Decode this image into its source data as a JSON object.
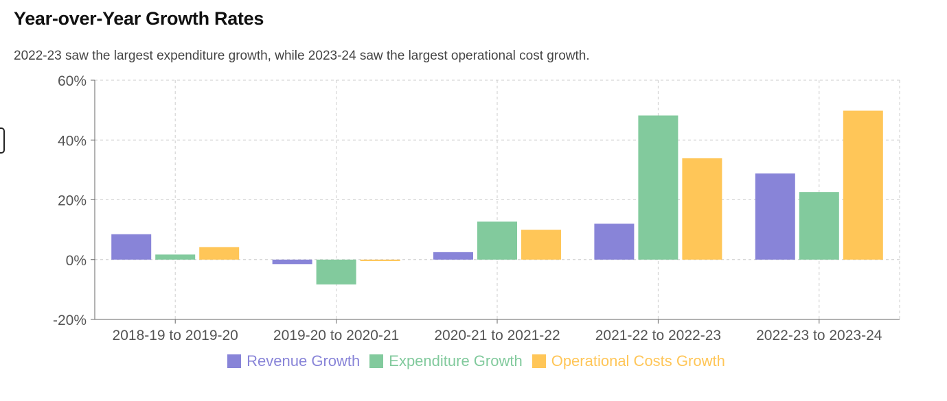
{
  "title": "Year-over-Year Growth Rates",
  "subtitle": "2022-23 saw the largest expenditure growth, while 2023-24 saw the largest operational cost growth.",
  "chart_data": {
    "type": "bar",
    "categories": [
      "2018-19 to 2019-20",
      "2019-20 to 2020-21",
      "2020-21 to 2021-22",
      "2021-22 to 2022-23",
      "2022-23 to 2023-24"
    ],
    "series": [
      {
        "name": "Revenue Growth",
        "color": "#8884d8",
        "values": [
          8.5,
          -1.5,
          2.5,
          12.0,
          28.8
        ]
      },
      {
        "name": "Expenditure Growth",
        "color": "#82ca9d",
        "values": [
          1.7,
          -8.3,
          12.7,
          48.2,
          22.6
        ]
      },
      {
        "name": "Operational Costs Growth",
        "color": "#ffc658",
        "values": [
          4.2,
          -0.5,
          10.0,
          33.9,
          49.8
        ]
      }
    ],
    "ylim": [
      -20,
      60
    ],
    "yticks": [
      -20,
      0,
      20,
      40,
      60
    ],
    "ytick_format": "percent",
    "grid": true,
    "legend": "bottom-center"
  }
}
